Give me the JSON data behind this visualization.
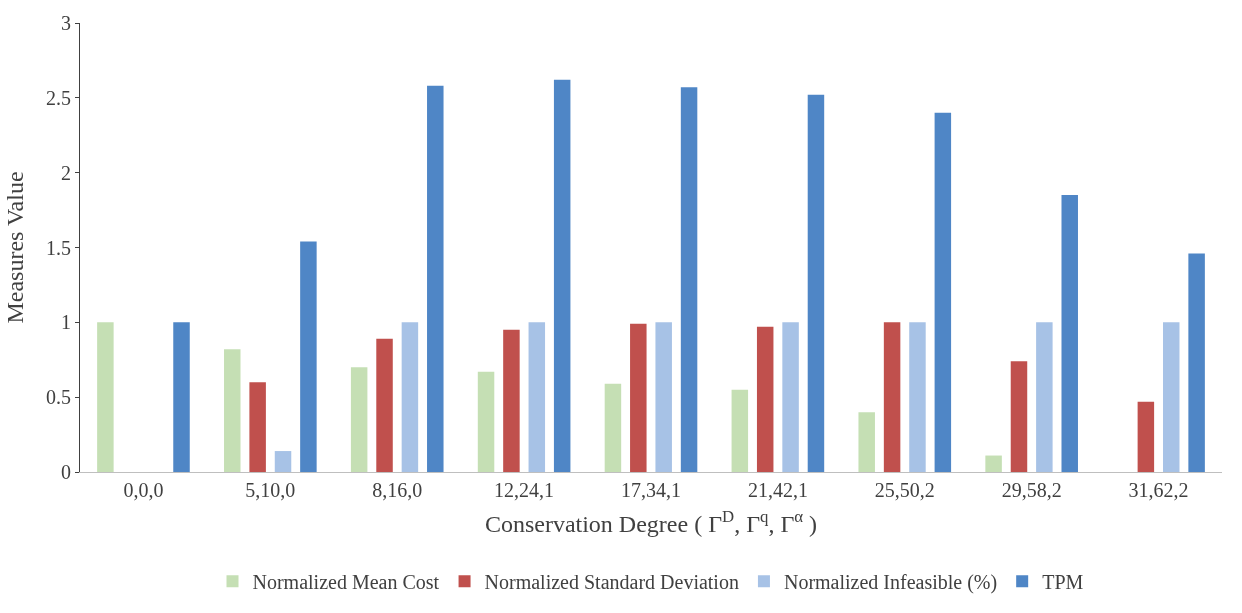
{
  "chart_data": {
    "type": "bar",
    "xlabel": "Conservation Degree ( Γ$^{D}$, Γ$^{q}$, Γ$^{α}$ )",
    "ylabel": "Measures Value",
    "categories": [
      "0,0,0",
      "5,10,0",
      "8,16,0",
      "12,24,1",
      "17,34,1",
      "21,42,1",
      "25,50,2",
      "29,58,2",
      "31,62,2"
    ],
    "series": [
      {
        "name": "Normalized Mean Cost",
        "color": "#c5dfb4",
        "values": [
          1.0,
          0.82,
          0.7,
          0.67,
          0.59,
          0.55,
          0.4,
          0.11,
          0
        ]
      },
      {
        "name": "Normalized Standard Deviation",
        "color": "#c0504d",
        "values": [
          0,
          0.6,
          0.89,
          0.95,
          0.99,
          0.97,
          1.0,
          0.74,
          0.47
        ]
      },
      {
        "name": "Normalized Infeasible (%)",
        "color": "#a7c2e6",
        "values": [
          0,
          0.14,
          1,
          1,
          1,
          1,
          1,
          1,
          1
        ]
      },
      {
        "name": "TPM",
        "color": "#4f86c6",
        "values": [
          1.0,
          1.54,
          2.58,
          2.62,
          2.57,
          2.52,
          2.4,
          1.85,
          1.46
        ]
      }
    ],
    "ylim": [
      0,
      3
    ],
    "yticks": [
      0,
      0.5,
      1,
      1.5,
      2,
      2.5,
      3
    ],
    "legend": "bottom"
  }
}
